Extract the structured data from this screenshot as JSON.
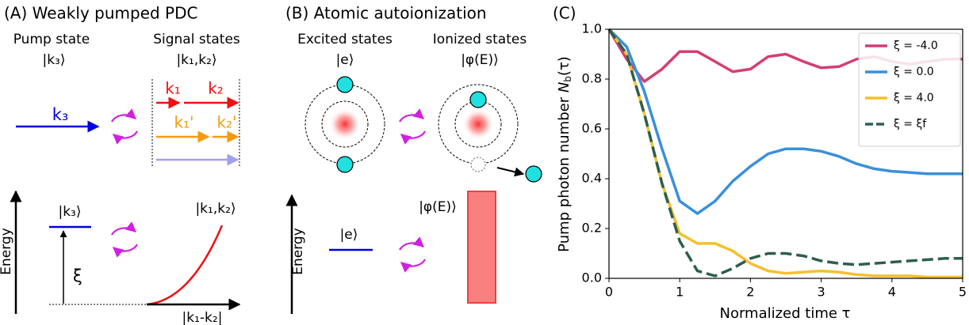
{
  "panel_a": {
    "title": "(A) Weakly pumped PDC",
    "pump_label": "Pump state",
    "pump_state": "|k₃⟩",
    "signal_label": "Signal states",
    "signal_state": "|k₁,k₂⟩",
    "k3": "k₃",
    "k1": "k₁",
    "k2": "k₂",
    "k1p": "k₁'",
    "k2p": "k₂'",
    "energy": "Energy",
    "level_pump": "|k₃⟩",
    "detuning": "ξ",
    "level_signal": "|k₁,k₂⟩",
    "axis": "|k₁-k₂|"
  },
  "panel_b": {
    "title": "(B) Atomic autoionization",
    "excited_label": "Excited states",
    "excited_state": "|e⟩",
    "ionized_label": "Ionized states",
    "ionized_state": "|φ(E)⟩",
    "energy": "Energy",
    "level_excited": "|e⟩",
    "level_ionized": "|φ(E)⟩"
  },
  "chart_data": {
    "type": "line",
    "title": "(C)",
    "xlabel": "Normalized time τ",
    "ylabel": {
      "text": "Pump photon number",
      "symbol": "N",
      "subscript": "b",
      "argument": "(τ)"
    },
    "x": [
      0,
      0.25,
      0.5,
      0.75,
      1,
      1.25,
      1.5,
      1.75,
      2,
      2.25,
      2.5,
      2.75,
      3,
      3.25,
      3.5,
      3.75,
      4,
      4.25,
      4.5,
      4.75,
      5
    ],
    "series": [
      {
        "name": "ξ = -4.0",
        "color": "#d63e6f",
        "linestyle": "solid",
        "values": [
          1.0,
          0.88,
          0.79,
          0.84,
          0.91,
          0.91,
          0.87,
          0.83,
          0.84,
          0.89,
          0.9,
          0.87,
          0.845,
          0.85,
          0.88,
          0.89,
          0.87,
          0.86,
          0.87,
          0.88,
          0.88
        ]
      },
      {
        "name": "ξ = 0.0",
        "color": "#3b8fd9",
        "linestyle": "solid",
        "values": [
          1.0,
          0.93,
          0.75,
          0.52,
          0.31,
          0.26,
          0.31,
          0.39,
          0.45,
          0.5,
          0.52,
          0.52,
          0.51,
          0.49,
          0.46,
          0.44,
          0.43,
          0.425,
          0.42,
          0.42,
          0.42
        ]
      },
      {
        "name": "ξ = 4.0",
        "color": "#f5c02f",
        "linestyle": "solid",
        "values": [
          1.0,
          0.9,
          0.66,
          0.38,
          0.18,
          0.14,
          0.14,
          0.11,
          0.06,
          0.03,
          0.02,
          0.025,
          0.03,
          0.025,
          0.015,
          0.01,
          0.01,
          0.01,
          0.005,
          0.005,
          0.005
        ]
      },
      {
        "name": "ξ = ξf",
        "color": "#2e5e4e",
        "linestyle": "dashed",
        "values": [
          1.0,
          0.9,
          0.66,
          0.38,
          0.15,
          0.03,
          0.01,
          0.04,
          0.08,
          0.1,
          0.1,
          0.09,
          0.07,
          0.06,
          0.055,
          0.06,
          0.065,
          0.07,
          0.075,
          0.08,
          0.08
        ]
      }
    ],
    "xlim": [
      0,
      5
    ],
    "ylim": [
      0,
      1
    ],
    "xticks": [
      0,
      1,
      2,
      3,
      4,
      5
    ],
    "yticks": [
      {
        "value": 0,
        "label": "0.0"
      },
      0.2,
      0.4,
      0.6,
      0.8,
      {
        "value": 1,
        "label": "1.0"
      }
    ],
    "grid": false,
    "legend": "upper right"
  }
}
